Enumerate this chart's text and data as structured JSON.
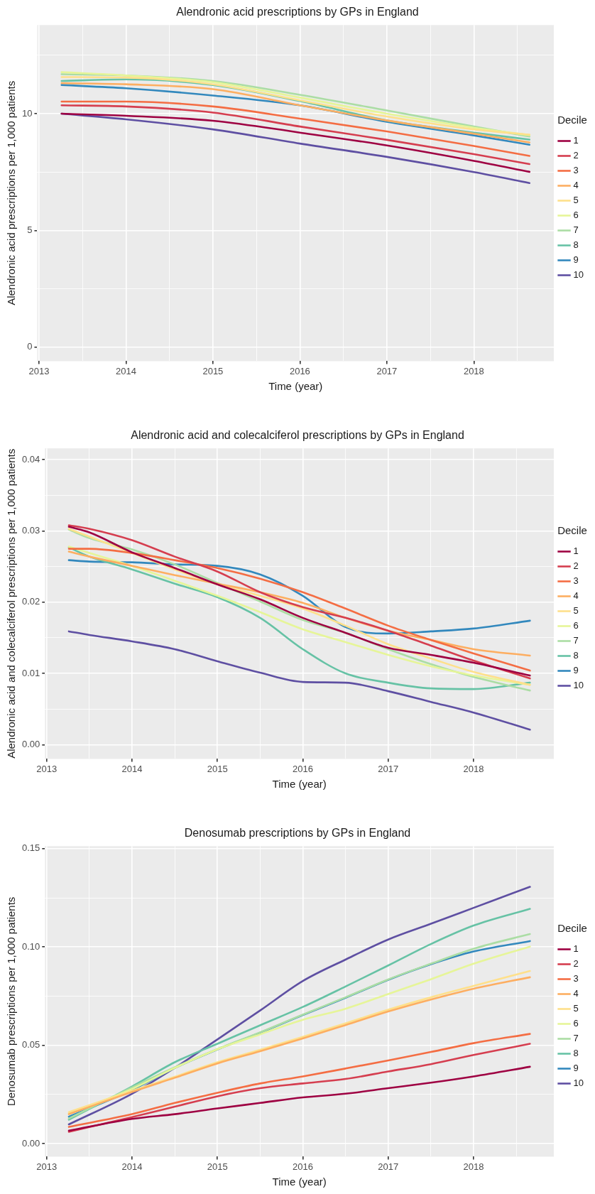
{
  "chart_data": [
    {
      "type": "line",
      "title": "Alendronic acid prescriptions by GPs in England",
      "xlabel": "Time (year)",
      "ylabel": "Alendronic acid prescriptions per 1,000 patients",
      "legend_title": "Decile",
      "legend": "right",
      "grid": true,
      "marker": "none",
      "line_style": "solid",
      "x": [
        2013.26,
        2014,
        2015,
        2016,
        2017,
        2018,
        2018.64
      ],
      "xlim": [
        2012.98,
        2018.92
      ],
      "xticks": [
        2013,
        {
          "value": 2013.5,
          "label": null
        },
        2014,
        {
          "value": 2014.5,
          "label": null
        },
        2015,
        {
          "value": 2015.5,
          "label": null
        },
        2016,
        {
          "value": 2016.5,
          "label": null
        },
        2017,
        {
          "value": 2017.5,
          "label": null
        },
        2018,
        {
          "value": 2018.5,
          "label": null
        }
      ],
      "ylim": [
        -0.6,
        13.8
      ],
      "yticks": [
        0,
        {
          "value": 2.5,
          "label": null
        },
        5,
        {
          "value": 7.5,
          "label": null
        },
        10,
        {
          "value": 12.5,
          "label": null
        }
      ],
      "series": [
        {
          "name": "1",
          "color": "#9e0142",
          "values": [
            10.0,
            9.91,
            9.7,
            9.19,
            8.64,
            7.98,
            7.51
          ]
        },
        {
          "name": "2",
          "color": "#d53e4f",
          "values": [
            10.36,
            10.31,
            10.05,
            9.45,
            8.88,
            8.27,
            7.84
          ]
        },
        {
          "name": "3",
          "color": "#f46d43",
          "values": [
            10.52,
            10.52,
            10.31,
            9.79,
            9.24,
            8.62,
            8.19
          ]
        },
        {
          "name": "4",
          "color": "#fdae61",
          "values": [
            11.31,
            11.26,
            11.05,
            10.36,
            9.71,
            9.14,
            8.77
          ]
        },
        {
          "name": "5",
          "color": "#fee08b",
          "values": [
            11.57,
            11.55,
            11.26,
            10.57,
            9.88,
            9.33,
            9.1
          ]
        },
        {
          "name": "6",
          "color": "#e6f598",
          "values": [
            11.78,
            11.64,
            11.35,
            10.69,
            10.0,
            9.4,
            9.08
          ]
        },
        {
          "name": "7",
          "color": "#abdda4",
          "values": [
            11.69,
            11.64,
            11.4,
            10.81,
            10.14,
            9.45,
            9.02
          ]
        },
        {
          "name": "8",
          "color": "#66c2a5",
          "values": [
            11.4,
            11.47,
            11.23,
            10.54,
            9.71,
            9.19,
            8.89
          ]
        },
        {
          "name": "9",
          "color": "#3288bd",
          "values": [
            11.23,
            11.09,
            10.78,
            10.36,
            9.65,
            9.07,
            8.67
          ]
        },
        {
          "name": "10",
          "color": "#5e4fa2",
          "values": [
            10.0,
            9.76,
            9.33,
            8.72,
            8.15,
            7.5,
            7.03
          ]
        }
      ]
    },
    {
      "type": "line",
      "title": "Alendronic acid and colecalciferol prescriptions by GPs in England",
      "xlabel": "Time (year)",
      "ylabel": "Alendronic acid and colecalciferol prescriptions per 1,000 patients",
      "legend_title": "Decile",
      "legend": "right",
      "grid": true,
      "marker": "none",
      "line_style": "solid",
      "x": [
        2013.26,
        2013.5,
        2014,
        2014.5,
        2015,
        2015.5,
        2016,
        2016.5,
        2017,
        2017.5,
        2018,
        2018.66
      ],
      "xlim": [
        2012.98,
        2018.94
      ],
      "xticks": [
        2013,
        {
          "value": 2013.5,
          "label": null
        },
        2014,
        {
          "value": 2014.5,
          "label": null
        },
        2015,
        {
          "value": 2015.5,
          "label": null
        },
        2016,
        {
          "value": 2016.5,
          "label": null
        },
        2017,
        {
          "value": 2017.5,
          "label": null
        },
        2018,
        {
          "value": 2018.5,
          "label": null
        }
      ],
      "ylim": [
        -0.002,
        0.0416
      ],
      "yticks": [
        {
          "value": 0,
          "label": "0.00"
        },
        {
          "value": 0.005,
          "label": null
        },
        {
          "value": 0.01,
          "label": "0.01"
        },
        {
          "value": 0.015,
          "label": null
        },
        {
          "value": 0.02,
          "label": "0.02"
        },
        {
          "value": 0.025,
          "label": null
        },
        {
          "value": 0.03,
          "label": "0.03"
        },
        {
          "value": 0.035,
          "label": null
        },
        {
          "value": 0.04,
          "label": "0.04"
        }
      ],
      "series": [
        {
          "name": "1",
          "color": "#9e0142",
          "values": [
            0.0306,
            0.0298,
            0.027,
            0.0248,
            0.0225,
            0.0204,
            0.0178,
            0.0157,
            0.0136,
            0.0126,
            0.0115,
            0.0097
          ]
        },
        {
          "name": "2",
          "color": "#d53e4f",
          "values": [
            0.0308,
            0.0303,
            0.0287,
            0.0264,
            0.0243,
            0.0214,
            0.0193,
            0.0178,
            0.016,
            0.0139,
            0.0118,
            0.0093
          ]
        },
        {
          "name": "3",
          "color": "#f46d43",
          "values": [
            0.0275,
            0.0275,
            0.0269,
            0.0259,
            0.0248,
            0.0233,
            0.0214,
            0.0191,
            0.0167,
            0.0147,
            0.0128,
            0.0104
          ]
        },
        {
          "name": "4",
          "color": "#fdae61",
          "values": [
            0.0271,
            0.0264,
            0.0251,
            0.0238,
            0.0226,
            0.0214,
            0.0199,
            0.0178,
            0.016,
            0.0147,
            0.0134,
            0.0125
          ]
        },
        {
          "name": "5",
          "color": "#fee08b",
          "values": [
            0.0303,
            0.0292,
            0.0269,
            0.0246,
            0.0225,
            0.0209,
            0.0191,
            0.0167,
            0.0141,
            0.0121,
            0.0102,
            0.0084
          ]
        },
        {
          "name": "6",
          "color": "#e6f598",
          "values": [
            0.0278,
            0.0269,
            0.0251,
            0.023,
            0.0209,
            0.0186,
            0.0162,
            0.0144,
            0.0126,
            0.011,
            0.0097,
            0.0084
          ]
        },
        {
          "name": "7",
          "color": "#abdda4",
          "values": [
            0.0302,
            0.029,
            0.0274,
            0.0253,
            0.0227,
            0.0201,
            0.0175,
            0.0157,
            0.0134,
            0.0113,
            0.0095,
            0.0076
          ]
        },
        {
          "name": "8",
          "color": "#66c2a5",
          "values": [
            0.0277,
            0.0264,
            0.0246,
            0.0226,
            0.0207,
            0.0178,
            0.0134,
            0.01,
            0.0087,
            0.0079,
            0.0078,
            0.0087
          ]
        },
        {
          "name": "9",
          "color": "#3288bd",
          "values": [
            0.0259,
            0.0257,
            0.0256,
            0.0253,
            0.0251,
            0.0239,
            0.0209,
            0.0165,
            0.0156,
            0.0159,
            0.0163,
            0.0174
          ]
        },
        {
          "name": "10",
          "color": "#5e4fa2",
          "values": [
            0.0159,
            0.0154,
            0.0145,
            0.0134,
            0.0117,
            0.0101,
            0.0088,
            0.0087,
            0.0075,
            0.006,
            0.0045,
            0.0021
          ]
        }
      ]
    },
    {
      "type": "line",
      "title": "Denosumab prescriptions by GPs in England",
      "xlabel": "Time (year)",
      "ylabel": "Denosumab prescriptions per 1,000 patients",
      "legend_title": "Decile",
      "legend": "right",
      "grid": true,
      "marker": "none",
      "line_style": "solid",
      "x": [
        2013.26,
        2014,
        2014.5,
        2015,
        2015.5,
        2016,
        2016.5,
        2017,
        2017.5,
        2018,
        2018.66
      ],
      "xlim": [
        2012.98,
        2018.94
      ],
      "xticks": [
        2013,
        {
          "value": 2013.5,
          "label": null
        },
        2014,
        {
          "value": 2014.5,
          "label": null
        },
        2015,
        {
          "value": 2015.5,
          "label": null
        },
        2016,
        {
          "value": 2016.5,
          "label": null
        },
        2017,
        {
          "value": 2017.5,
          "label": null
        },
        2018,
        {
          "value": 2018.5,
          "label": null
        }
      ],
      "ylim": [
        -0.0066,
        0.1513
      ],
      "yticks": [
        {
          "value": 0,
          "label": "0.00"
        },
        {
          "value": 0.025,
          "label": null
        },
        {
          "value": 0.05,
          "label": "0.05"
        },
        {
          "value": 0.075,
          "label": null
        },
        {
          "value": 0.1,
          "label": "0.10"
        },
        {
          "value": 0.125,
          "label": null
        },
        {
          "value": 0.15,
          "label": "0.15"
        }
      ],
      "series": [
        {
          "name": "1",
          "color": "#9e0142",
          "values": [
            0.0066,
            0.0126,
            0.015,
            0.0179,
            0.0207,
            0.0235,
            0.0254,
            0.0282,
            0.031,
            0.0342,
            0.0391
          ]
        },
        {
          "name": "2",
          "color": "#d53e4f",
          "values": [
            0.006,
            0.0135,
            0.0188,
            0.0241,
            0.0282,
            0.0306,
            0.0329,
            0.0367,
            0.0404,
            0.0451,
            0.0508
          ]
        },
        {
          "name": "3",
          "color": "#f46d43",
          "values": [
            0.0085,
            0.015,
            0.0207,
            0.0259,
            0.0306,
            0.0342,
            0.0382,
            0.0423,
            0.0466,
            0.0511,
            0.0558
          ]
        },
        {
          "name": "4",
          "color": "#fdae61",
          "values": [
            0.015,
            0.0263,
            0.0335,
            0.0408,
            0.047,
            0.0535,
            0.0603,
            0.0672,
            0.0733,
            0.0788,
            0.0846
          ]
        },
        {
          "name": "5",
          "color": "#fee08b",
          "values": [
            0.016,
            0.0269,
            0.034,
            0.0414,
            0.0477,
            0.0543,
            0.0612,
            0.0681,
            0.0744,
            0.0802,
            0.0878
          ]
        },
        {
          "name": "6",
          "color": "#e6f598",
          "values": [
            0.0154,
            0.0278,
            0.0385,
            0.048,
            0.0556,
            0.063,
            0.0686,
            0.0761,
            0.0836,
            0.0915,
            0.1002
          ]
        },
        {
          "name": "7",
          "color": "#abdda4",
          "values": [
            0.0128,
            0.0286,
            0.0388,
            0.0481,
            0.0566,
            0.0656,
            0.0744,
            0.0835,
            0.0915,
            0.0991,
            0.1066
          ]
        },
        {
          "name": "8",
          "color": "#66c2a5",
          "values": [
            0.0122,
            0.0291,
            0.0414,
            0.0508,
            0.0602,
            0.0695,
            0.0799,
            0.0906,
            0.1015,
            0.1109,
            0.1194
          ]
        },
        {
          "name": "9",
          "color": "#3288bd",
          "values": [
            0.0137,
            0.0273,
            0.0385,
            0.0479,
            0.0564,
            0.0654,
            0.0742,
            0.0833,
            0.0912,
            0.0977,
            0.103
          ]
        },
        {
          "name": "10",
          "color": "#5e4fa2",
          "values": [
            0.0098,
            0.0254,
            0.0385,
            0.053,
            0.0677,
            0.0827,
            0.0936,
            0.1038,
            0.1118,
            0.1199,
            0.1306
          ]
        }
      ]
    }
  ]
}
